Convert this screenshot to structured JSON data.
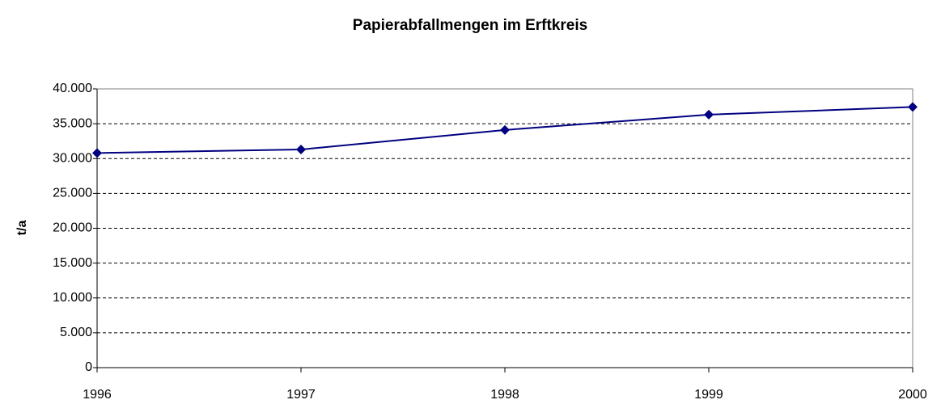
{
  "chart_data": {
    "type": "line",
    "title": "Papierabfallmengen im Erftkreis",
    "y_label": "t/a",
    "categories": [
      "1996",
      "1997",
      "1998",
      "1999",
      "2000"
    ],
    "series": [
      {
        "color": "#000080",
        "values": [
          30800,
          31300,
          34100,
          36300,
          37400
        ]
      }
    ],
    "ylim": [
      0,
      40000
    ],
    "yticks": [
      0,
      {
        "value": 5000,
        "label": "5.000"
      },
      {
        "value": 10000,
        "label": "10.000"
      },
      {
        "value": 15000,
        "label": "15.000"
      },
      {
        "value": 20000,
        "label": "20.000"
      },
      {
        "value": 25000,
        "label": "25.000"
      },
      {
        "value": 30000,
        "label": "30.000"
      },
      {
        "value": 35000,
        "label": "35.000"
      },
      {
        "value": 40000,
        "label": "40.000"
      }
    ],
    "grid": true
  }
}
